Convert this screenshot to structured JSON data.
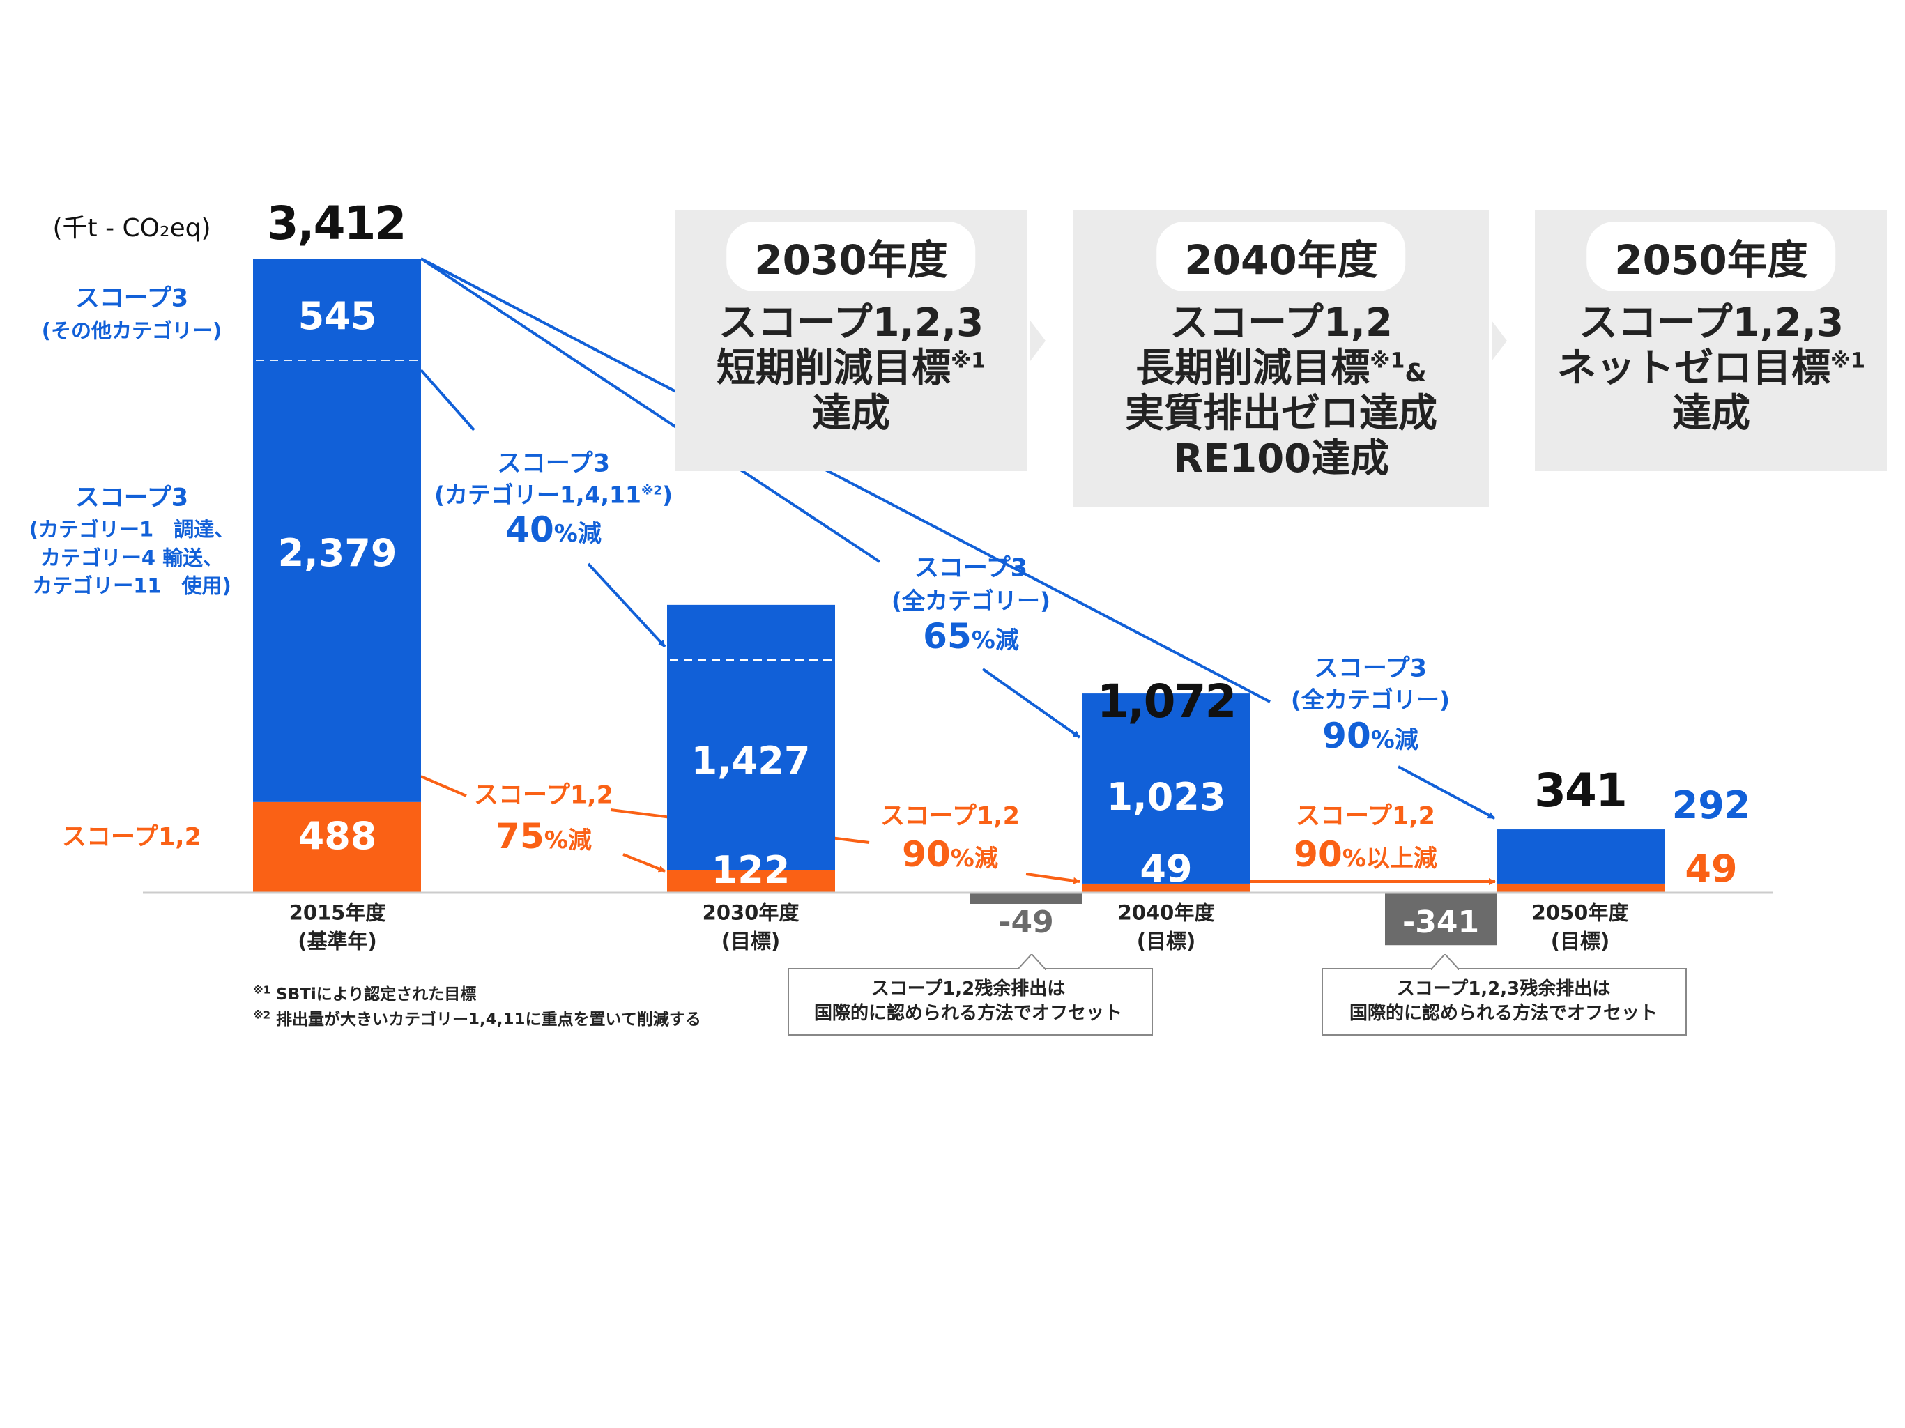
{
  "colors": {
    "scope3": "#1160d8",
    "scope12": "#fa6115",
    "offset": "#6b6b6b",
    "target_box": "#ebebeb"
  },
  "unit": "(千t - CO₂eq)",
  "left_labels": {
    "scope3_other": [
      "スコープ3",
      "(その他カテゴリー)"
    ],
    "scope3_main": [
      "スコープ3",
      "(カテゴリー1　調達、",
      "カテゴリー4 輸送、",
      "カテゴリー11　使用)"
    ],
    "scope12": "スコープ1,2"
  },
  "chart_data": {
    "type": "bar",
    "stacked": true,
    "categories": [
      "2015年度",
      "2030年度",
      "2040年度",
      "2050年度"
    ],
    "category_sublabels": [
      "(基準年)",
      "(目標)",
      "(目標)",
      "(目標)"
    ],
    "totals": [
      "3,412",
      "",
      "1,072",
      "341"
    ],
    "series": [
      {
        "name": "スコープ1,2",
        "values": [
          488,
          122,
          49,
          49
        ],
        "labels": [
          "488",
          "122",
          "49",
          "49"
        ]
      },
      {
        "name": "スコープ3 (カテゴリー1,4,11)",
        "values": [
          2379,
          1427,
          1023,
          292
        ],
        "labels": [
          "2,379",
          "1,427",
          "1,023",
          "292"
        ]
      },
      {
        "name": "スコープ3 (その他カテゴリー)",
        "values": [
          545,
          0,
          0,
          0
        ],
        "labels": [
          "545",
          "",
          "",
          ""
        ]
      }
    ],
    "offsets": [
      {
        "category": "2040年度",
        "value": -49,
        "label": "-49"
      },
      {
        "category": "2050年度",
        "value": -341,
        "label": "-341"
      }
    ],
    "ylim": [
      -341,
      3412
    ]
  },
  "annotations": {
    "s3_cat": {
      "l1": "スコープ3",
      "l2": "(カテゴリー1,4,11",
      "sup": "※2",
      ")": ")",
      "pct": "40",
      "unit": "%減"
    },
    "s3_all65": {
      "l1": "スコープ3",
      "l2": "(全カテゴリー)",
      "pct": "65",
      "unit": "%減"
    },
    "s3_all90": {
      "l1": "スコープ3",
      "l2": "(全カテゴリー)",
      "pct": "90",
      "unit": "%減"
    },
    "s12_75": {
      "l1": "スコープ1,2",
      "pct": "75",
      "unit": "%減"
    },
    "s12_90": {
      "l1": "スコープ1,2",
      "pct": "90",
      "unit": "%減"
    },
    "s12_90plus": {
      "l1": "スコープ1,2",
      "pct": "90",
      "unit": "%以上減"
    }
  },
  "targets": [
    {
      "year": "2030年度",
      "lines": [
        "スコープ1,2,3",
        "短期削減目標",
        "達成"
      ],
      "note": "※1"
    },
    {
      "year": "2040年度",
      "lines": [
        "スコープ1,2",
        "長期削減目標",
        "実質排出ゼロ達成",
        "RE100達成"
      ],
      "note": "※1",
      "amp": "&"
    },
    {
      "year": "2050年度",
      "lines": [
        "スコープ1,2,3",
        "ネットゼロ目標",
        "達成"
      ],
      "note": "※1"
    }
  ],
  "callouts": [
    [
      "スコープ1,2残余排出は",
      "国際的に認められる方法でオフセット"
    ],
    [
      "スコープ1,2,3残余排出は",
      "国際的に認められる方法でオフセット"
    ]
  ],
  "footnotes": [
    {
      "mark": "※1",
      "text": "SBTiにより認定された目標"
    },
    {
      "mark": "※2",
      "text": "排出量が大きいカテゴリー1,4,11に重点を置いて削減する"
    }
  ]
}
